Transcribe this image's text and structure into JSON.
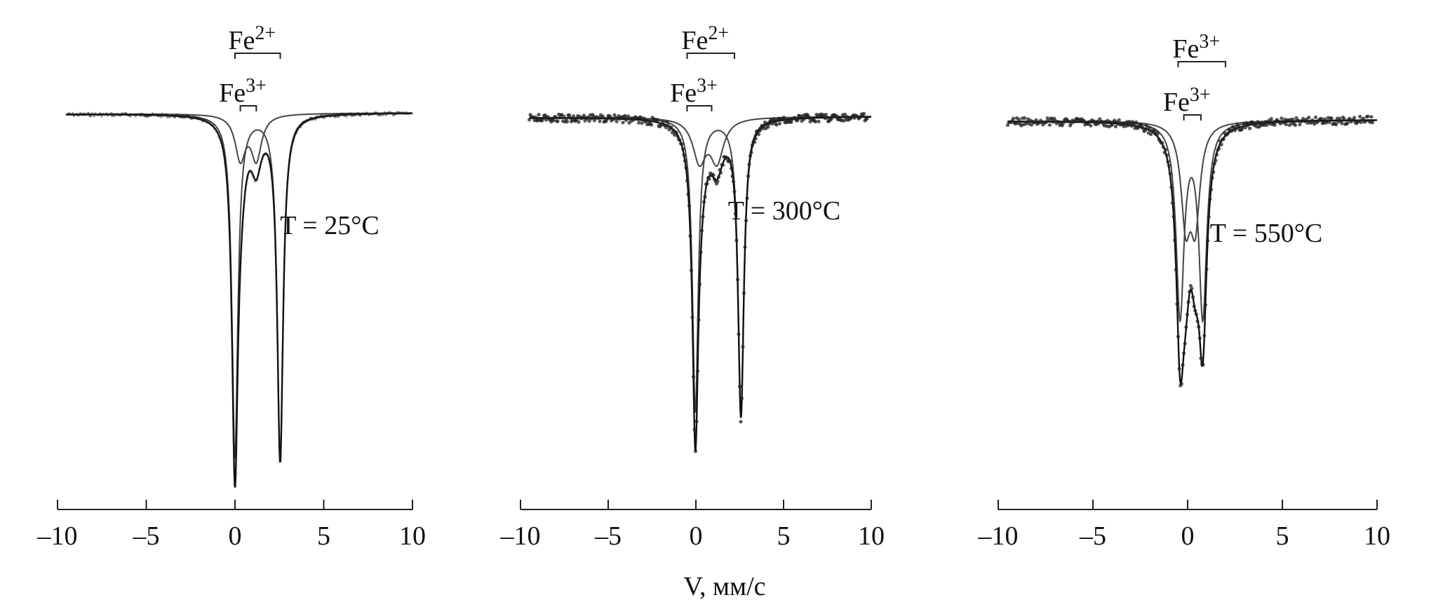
{
  "chart_data": [
    {
      "type": "line",
      "panel": "left",
      "temperature_label": "T = 25°C",
      "xlim": [
        -10,
        10
      ],
      "x_ticks": [
        -10,
        -5,
        0,
        5,
        10
      ],
      "x_tick_labels": [
        "–10",
        "–5",
        "0",
        "5",
        "10"
      ],
      "annotations": [
        {
          "text": "Fe",
          "sup": "2+",
          "splitting": [
            0.0,
            2.55
          ]
        },
        {
          "text": "Fe",
          "sup": "3+",
          "splitting": [
            0.3,
            1.2
          ]
        }
      ],
      "components": [
        {
          "center": 1.27,
          "split": 2.55,
          "depth": 0.78,
          "width": 0.2
        },
        {
          "center": 0.75,
          "split": 0.9,
          "depth": 0.1,
          "width": 0.35
        }
      ]
    },
    {
      "type": "line",
      "panel": "middle",
      "temperature_label": "T = 300°C",
      "xlim": [
        -10,
        10
      ],
      "x_ticks": [
        -10,
        -5,
        0,
        5,
        10
      ],
      "x_tick_labels": [
        "–10",
        "–5",
        "0",
        "5",
        "10"
      ],
      "annotations": [
        {
          "text": "Fe",
          "sup": "2+",
          "splitting": [
            -0.5,
            2.2
          ]
        },
        {
          "text": "Fe",
          "sup": "3+",
          "splitting": [
            -0.5,
            0.9
          ]
        }
      ],
      "components": [
        {
          "center": 1.27,
          "split": 2.6,
          "depth": 0.7,
          "width": 0.2
        },
        {
          "center": 0.7,
          "split": 1.0,
          "depth": 0.1,
          "width": 0.45
        }
      ]
    },
    {
      "type": "line",
      "panel": "right",
      "temperature_label": "T = 550°C",
      "xlim": [
        -10,
        10
      ],
      "x_ticks": [
        -10,
        -5,
        0,
        5,
        10
      ],
      "x_tick_labels": [
        "–10",
        "–5",
        "0",
        "5",
        "10"
      ],
      "annotations": [
        {
          "text": "Fe",
          "sup": "3+",
          "splitting": [
            -0.5,
            2.0
          ]
        },
        {
          "text": "Fe",
          "sup": "3+",
          "splitting": [
            -0.2,
            0.7
          ]
        }
      ],
      "components": [
        {
          "center": 0.2,
          "split": 1.2,
          "depth": 0.45,
          "width": 0.25
        },
        {
          "center": 0.15,
          "split": 0.5,
          "depth": 0.22,
          "width": 0.3
        }
      ]
    }
  ],
  "shared_xlabel": "V, мм/с"
}
